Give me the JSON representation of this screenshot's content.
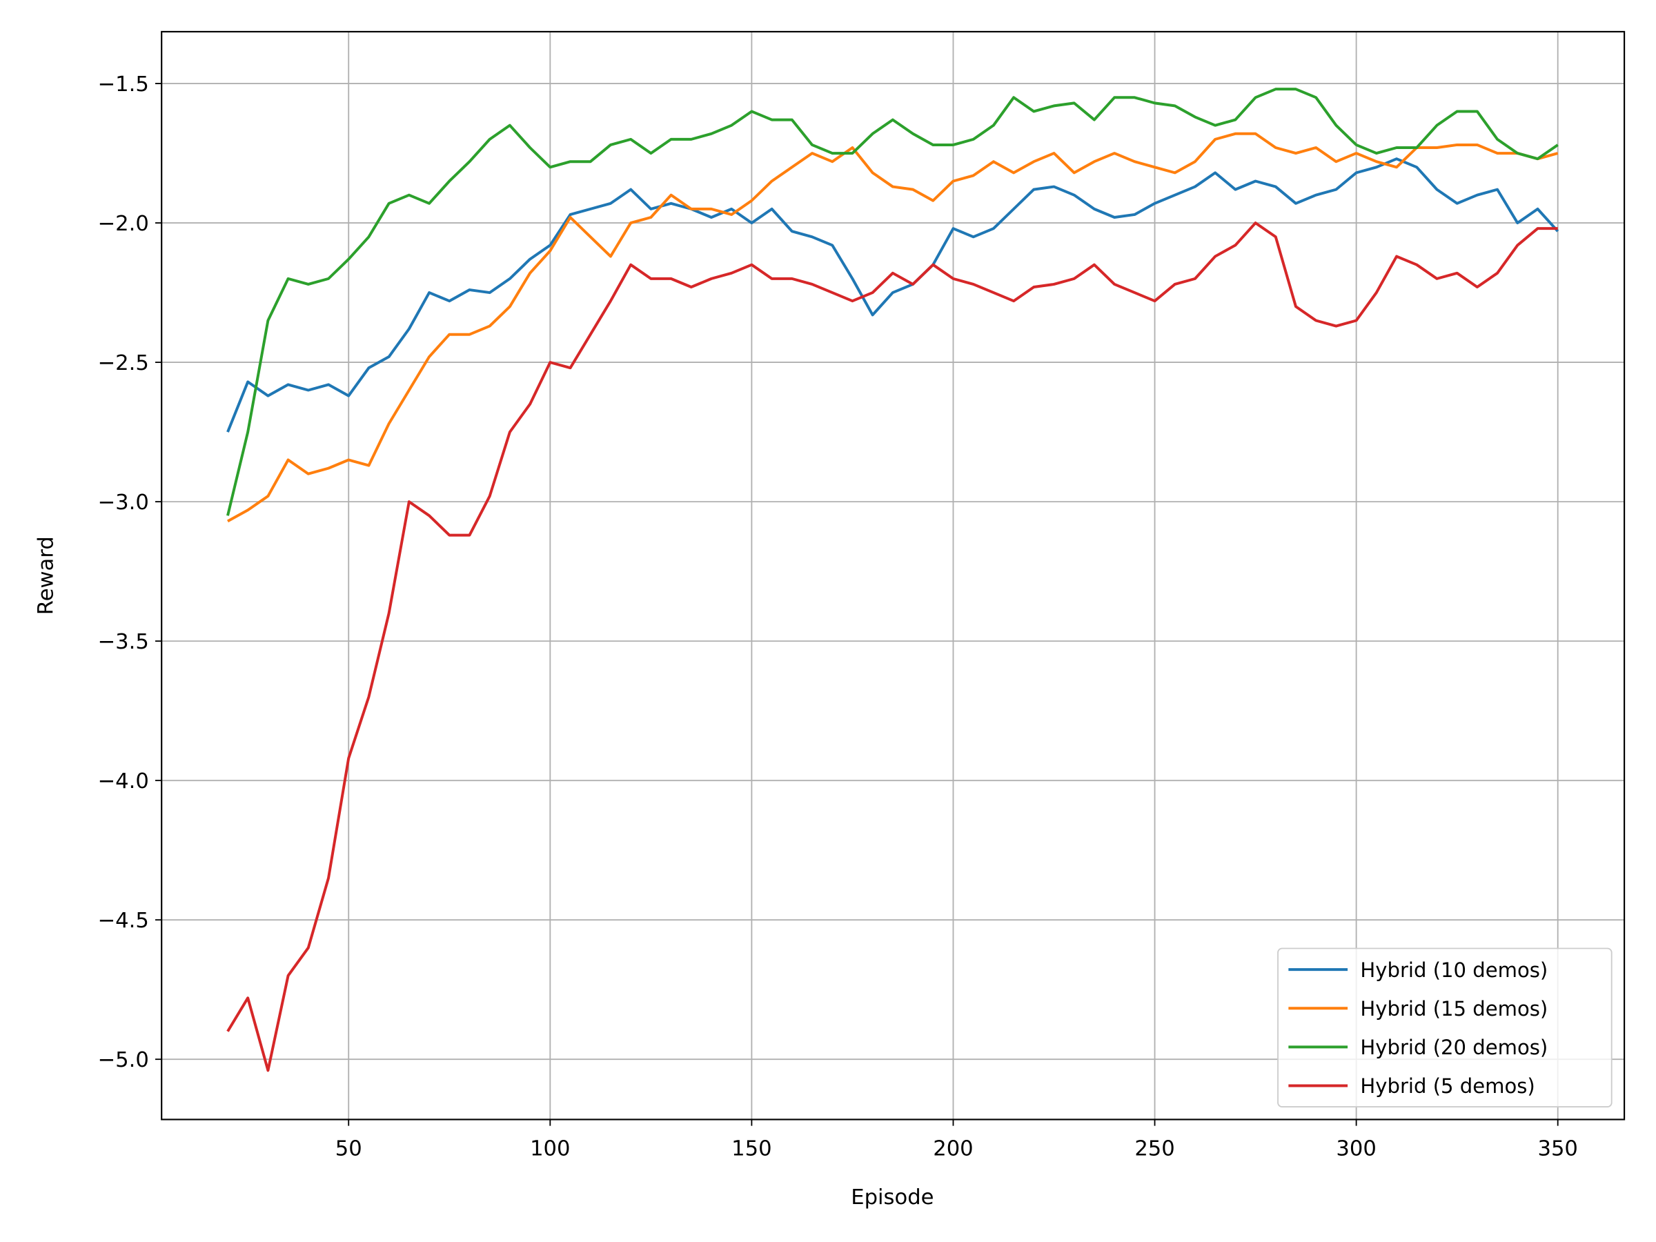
{
  "chart_data": {
    "type": "line",
    "xlabel": "Episode",
    "ylabel": "Reward",
    "x": [
      20,
      25,
      30,
      35,
      40,
      45,
      50,
      55,
      60,
      65,
      70,
      75,
      80,
      85,
      90,
      95,
      100,
      105,
      110,
      115,
      120,
      125,
      130,
      135,
      140,
      145,
      150,
      155,
      160,
      165,
      170,
      175,
      180,
      185,
      190,
      195,
      200,
      205,
      210,
      215,
      220,
      225,
      230,
      235,
      240,
      245,
      250,
      255,
      260,
      265,
      270,
      275,
      280,
      285,
      290,
      295,
      300,
      305,
      310,
      315,
      320,
      325,
      330,
      335,
      340,
      345,
      350
    ],
    "series": [
      {
        "name": "Hybrid (10 demos)",
        "color": "#1f77b4",
        "values": [
          -2.75,
          -2.57,
          -2.62,
          -2.58,
          -2.6,
          -2.58,
          -2.62,
          -2.52,
          -2.48,
          -2.38,
          -2.25,
          -2.28,
          -2.24,
          -2.25,
          -2.2,
          -2.13,
          -2.08,
          -1.97,
          -1.95,
          -1.93,
          -1.88,
          -1.95,
          -1.93,
          -1.95,
          -1.98,
          -1.95,
          -2.0,
          -1.95,
          -2.03,
          -2.05,
          -2.08,
          -2.2,
          -2.33,
          -2.25,
          -2.22,
          -2.15,
          -2.02,
          -2.05,
          -2.02,
          -1.95,
          -1.88,
          -1.87,
          -1.9,
          -1.95,
          -1.98,
          -1.97,
          -1.93,
          -1.9,
          -1.87,
          -1.82,
          -1.88,
          -1.85,
          -1.87,
          -1.93,
          -1.9,
          -1.88,
          -1.82,
          -1.8,
          -1.77,
          -1.8,
          -1.88,
          -1.93,
          -1.9,
          -1.88,
          -2.0,
          -1.95,
          -2.03
        ]
      },
      {
        "name": "Hybrid (15 demos)",
        "color": "#ff7f0e",
        "values": [
          -3.07,
          -3.03,
          -2.98,
          -2.85,
          -2.9,
          -2.88,
          -2.85,
          -2.87,
          -2.72,
          -2.6,
          -2.48,
          -2.4,
          -2.4,
          -2.37,
          -2.3,
          -2.18,
          -2.1,
          -1.98,
          -2.05,
          -2.12,
          -2.0,
          -1.98,
          -1.9,
          -1.95,
          -1.95,
          -1.97,
          -1.92,
          -1.85,
          -1.8,
          -1.75,
          -1.78,
          -1.73,
          -1.82,
          -1.87,
          -1.88,
          -1.92,
          -1.85,
          -1.83,
          -1.78,
          -1.82,
          -1.78,
          -1.75,
          -1.82,
          -1.78,
          -1.75,
          -1.78,
          -1.8,
          -1.82,
          -1.78,
          -1.7,
          -1.68,
          -1.68,
          -1.73,
          -1.75,
          -1.73,
          -1.78,
          -1.75,
          -1.78,
          -1.8,
          -1.73,
          -1.73,
          -1.72,
          -1.72,
          -1.75,
          -1.75,
          -1.77,
          -1.75
        ]
      },
      {
        "name": "Hybrid (20 demos)",
        "color": "#2ca02c",
        "values": [
          -3.05,
          -2.75,
          -2.35,
          -2.2,
          -2.22,
          -2.2,
          -2.13,
          -2.05,
          -1.93,
          -1.9,
          -1.93,
          -1.85,
          -1.78,
          -1.7,
          -1.65,
          -1.73,
          -1.8,
          -1.78,
          -1.78,
          -1.72,
          -1.7,
          -1.75,
          -1.7,
          -1.7,
          -1.68,
          -1.65,
          -1.6,
          -1.63,
          -1.63,
          -1.72,
          -1.75,
          -1.75,
          -1.68,
          -1.63,
          -1.68,
          -1.72,
          -1.72,
          -1.7,
          -1.65,
          -1.55,
          -1.6,
          -1.58,
          -1.57,
          -1.63,
          -1.55,
          -1.55,
          -1.57,
          -1.58,
          -1.62,
          -1.65,
          -1.63,
          -1.55,
          -1.52,
          -1.52,
          -1.55,
          -1.65,
          -1.72,
          -1.75,
          -1.73,
          -1.73,
          -1.65,
          -1.6,
          -1.6,
          -1.7,
          -1.75,
          -1.77,
          -1.72
        ]
      },
      {
        "name": "Hybrid (5 demos)",
        "color": "#d62728",
        "values": [
          -4.9,
          -4.78,
          -5.04,
          -4.7,
          -4.6,
          -4.35,
          -3.92,
          -3.7,
          -3.4,
          -3.0,
          -3.05,
          -3.12,
          -3.12,
          -2.98,
          -2.75,
          -2.65,
          -2.5,
          -2.52,
          -2.4,
          -2.28,
          -2.15,
          -2.2,
          -2.2,
          -2.23,
          -2.2,
          -2.18,
          -2.15,
          -2.2,
          -2.2,
          -2.22,
          -2.25,
          -2.28,
          -2.25,
          -2.18,
          -2.22,
          -2.15,
          -2.2,
          -2.22,
          -2.25,
          -2.28,
          -2.23,
          -2.22,
          -2.2,
          -2.15,
          -2.22,
          -2.25,
          -2.28,
          -2.22,
          -2.2,
          -2.12,
          -2.08,
          -2.0,
          -2.05,
          -2.3,
          -2.35,
          -2.37,
          -2.35,
          -2.25,
          -2.12,
          -2.15,
          -2.2,
          -2.18,
          -2.23,
          -2.18,
          -2.08,
          -2.02,
          -2.02
        ]
      }
    ],
    "xlim": [
      3.6,
      366.5
    ],
    "ylim": [
      -5.216,
      -1.314
    ],
    "xticks": [
      50,
      100,
      150,
      200,
      250,
      300,
      350
    ],
    "yticks": [
      {
        "value": -5.0,
        "label": "−5.0"
      },
      {
        "value": -4.5,
        "label": "−4.5"
      },
      {
        "value": -4.0,
        "label": "−4.0"
      },
      {
        "value": -3.5,
        "label": "−3.5"
      },
      {
        "value": -3.0,
        "label": "−3.0"
      },
      {
        "value": -2.5,
        "label": "−2.5"
      },
      {
        "value": -2.0,
        "label": "−2.0"
      },
      {
        "value": -1.5,
        "label": "−1.5"
      }
    ],
    "grid": true,
    "legend": "lower right"
  }
}
